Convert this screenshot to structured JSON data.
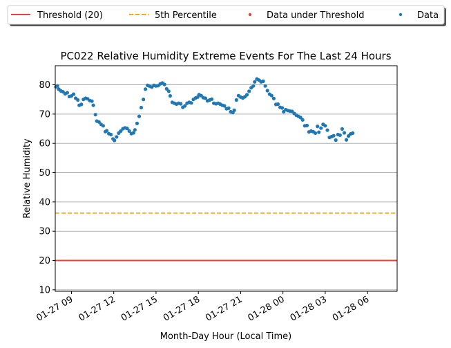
{
  "chart_data": {
    "type": "scatter",
    "title": "PC022 Relative Humidity Extreme Events For The Last 24 Hours",
    "xlabel": "Month-Day Hour (Local Time)",
    "ylabel": "Relative Humidity",
    "ylim": [
      9.5,
      86.5
    ],
    "xlim": [
      7.85,
      32.1
    ],
    "x_unit": "hours after 01-27 00:00 local time",
    "grid": "horizontal",
    "legend_position": "top, outside plot area",
    "yticks": [
      10,
      20,
      30,
      40,
      50,
      60,
      70,
      80
    ],
    "xticks": [
      {
        "x": 9,
        "label": "01-27 09"
      },
      {
        "x": 12,
        "label": "01-27 12"
      },
      {
        "x": 15,
        "label": "01-27 15"
      },
      {
        "x": 18,
        "label": "01-27 18"
      },
      {
        "x": 21,
        "label": "01-27 21"
      },
      {
        "x": 24,
        "label": "01-28 00"
      },
      {
        "x": 27,
        "label": "01-28 03"
      },
      {
        "x": 30,
        "label": "01-28 06"
      }
    ],
    "legend": [
      {
        "label": "Threshold (20)",
        "style": "solid-line",
        "color": "#e8413c"
      },
      {
        "label": "5th Percentile",
        "style": "dashed-line",
        "color": "#ffa500"
      },
      {
        "label": "Data under Threshold",
        "style": "dot",
        "color": "#e8413c"
      },
      {
        "label": "Data",
        "style": "dot",
        "color": "#1f77b4"
      }
    ],
    "threshold": 20,
    "percentile_5th": 36.2,
    "series": [
      {
        "name": "Data",
        "color": "#1f77b4",
        "points": [
          [
            7.9,
            79.3
          ],
          [
            8.0,
            79.6
          ],
          [
            8.1,
            78.5
          ],
          [
            8.25,
            77.9
          ],
          [
            8.4,
            77.6
          ],
          [
            8.55,
            76.9
          ],
          [
            8.7,
            77.3
          ],
          [
            8.85,
            76.0
          ],
          [
            9.0,
            76.2
          ],
          [
            9.15,
            76.8
          ],
          [
            9.3,
            75.4
          ],
          [
            9.45,
            74.8
          ],
          [
            9.55,
            73.0
          ],
          [
            9.7,
            73.3
          ],
          [
            9.85,
            75.0
          ],
          [
            10.0,
            75.4
          ],
          [
            10.15,
            75.2
          ],
          [
            10.3,
            74.6
          ],
          [
            10.45,
            74.4
          ],
          [
            10.55,
            73.0
          ],
          [
            10.7,
            69.8
          ],
          [
            10.8,
            67.6
          ],
          [
            10.95,
            67.3
          ],
          [
            11.1,
            66.5
          ],
          [
            11.25,
            66.0
          ],
          [
            11.4,
            64.0
          ],
          [
            11.5,
            64.3
          ],
          [
            11.65,
            63.3
          ],
          [
            11.8,
            63.0
          ],
          [
            11.95,
            61.5
          ],
          [
            12.05,
            61.0
          ],
          [
            12.2,
            62.2
          ],
          [
            12.35,
            63.5
          ],
          [
            12.5,
            64.2
          ],
          [
            12.65,
            65.0
          ],
          [
            12.8,
            65.3
          ],
          [
            12.95,
            65.1
          ],
          [
            13.1,
            64.2
          ],
          [
            13.25,
            63.3
          ],
          [
            13.4,
            63.6
          ],
          [
            13.5,
            64.6
          ],
          [
            13.65,
            66.8
          ],
          [
            13.8,
            69.2
          ],
          [
            13.95,
            72.2
          ],
          [
            14.1,
            75.0
          ],
          [
            14.25,
            78.5
          ],
          [
            14.4,
            79.8
          ],
          [
            14.55,
            79.5
          ],
          [
            14.7,
            79.2
          ],
          [
            14.85,
            79.8
          ],
          [
            15.0,
            79.6
          ],
          [
            15.15,
            79.7
          ],
          [
            15.3,
            80.3
          ],
          [
            15.45,
            80.6
          ],
          [
            15.6,
            80.1
          ],
          [
            15.75,
            78.6
          ],
          [
            15.9,
            77.8
          ],
          [
            16.0,
            76.2
          ],
          [
            16.15,
            74.0
          ],
          [
            16.3,
            73.7
          ],
          [
            16.45,
            73.4
          ],
          [
            16.6,
            73.7
          ],
          [
            16.75,
            73.5
          ],
          [
            16.9,
            72.3
          ],
          [
            17.05,
            72.8
          ],
          [
            17.2,
            73.7
          ],
          [
            17.35,
            74.0
          ],
          [
            17.5,
            73.8
          ],
          [
            17.65,
            75.0
          ],
          [
            17.8,
            75.5
          ],
          [
            17.95,
            75.8
          ],
          [
            18.05,
            76.6
          ],
          [
            18.2,
            76.3
          ],
          [
            18.35,
            75.6
          ],
          [
            18.5,
            75.4
          ],
          [
            18.65,
            74.5
          ],
          [
            18.8,
            74.8
          ],
          [
            18.95,
            75.1
          ],
          [
            19.1,
            73.7
          ],
          [
            19.25,
            73.5
          ],
          [
            19.4,
            73.7
          ],
          [
            19.55,
            73.4
          ],
          [
            19.7,
            73.0
          ],
          [
            19.85,
            72.8
          ],
          [
            20.0,
            71.8
          ],
          [
            20.15,
            72.0
          ],
          [
            20.3,
            70.8
          ],
          [
            20.45,
            70.5
          ],
          [
            20.55,
            71.3
          ],
          [
            20.7,
            74.8
          ],
          [
            20.85,
            76.3
          ],
          [
            21.0,
            75.8
          ],
          [
            21.15,
            75.5
          ],
          [
            21.3,
            75.9
          ],
          [
            21.45,
            76.6
          ],
          [
            21.6,
            77.8
          ],
          [
            21.75,
            79.0
          ],
          [
            21.9,
            79.6
          ],
          [
            22.0,
            81.0
          ],
          [
            22.15,
            82.0
          ],
          [
            22.3,
            81.6
          ],
          [
            22.45,
            81.0
          ],
          [
            22.6,
            81.2
          ],
          [
            22.75,
            79.6
          ],
          [
            22.9,
            78.0
          ],
          [
            23.05,
            76.8
          ],
          [
            23.2,
            76.3
          ],
          [
            23.35,
            75.3
          ],
          [
            23.5,
            73.3
          ],
          [
            23.65,
            73.4
          ],
          [
            23.8,
            72.3
          ],
          [
            23.95,
            72.1
          ],
          [
            24.05,
            70.8
          ],
          [
            24.2,
            71.5
          ],
          [
            24.35,
            71.2
          ],
          [
            24.5,
            71.0
          ],
          [
            24.65,
            70.9
          ],
          [
            24.8,
            70.2
          ],
          [
            24.95,
            69.6
          ],
          [
            25.1,
            69.2
          ],
          [
            25.25,
            68.8
          ],
          [
            25.4,
            68.0
          ],
          [
            25.55,
            66.0
          ],
          [
            25.7,
            66.1
          ],
          [
            25.85,
            63.9
          ],
          [
            26.0,
            64.2
          ],
          [
            26.15,
            64.0
          ],
          [
            26.3,
            63.5
          ],
          [
            26.45,
            65.8
          ],
          [
            26.55,
            63.8
          ],
          [
            26.7,
            65.2
          ],
          [
            26.85,
            66.5
          ],
          [
            27.0,
            66.0
          ],
          [
            27.15,
            64.5
          ],
          [
            27.3,
            62.0
          ],
          [
            27.45,
            62.3
          ],
          [
            27.6,
            62.6
          ],
          [
            27.75,
            61.1
          ],
          [
            27.9,
            63.0
          ],
          [
            28.05,
            62.8
          ],
          [
            28.2,
            64.9
          ],
          [
            28.35,
            63.6
          ],
          [
            28.5,
            61.2
          ],
          [
            28.65,
            62.5
          ],
          [
            28.8,
            63.2
          ],
          [
            28.95,
            63.5
          ]
        ]
      },
      {
        "name": "Data under Threshold",
        "color": "#e8413c",
        "points": []
      }
    ]
  }
}
